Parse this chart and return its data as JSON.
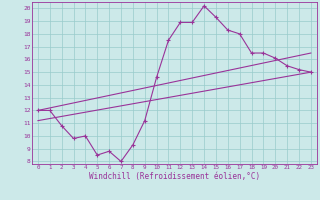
{
  "xlabel": "Windchill (Refroidissement éolien,°C)",
  "ylabel": "",
  "xlim": [
    -0.5,
    23.5
  ],
  "ylim": [
    7.8,
    20.5
  ],
  "yticks": [
    8,
    9,
    10,
    11,
    12,
    13,
    14,
    15,
    16,
    17,
    18,
    19,
    20
  ],
  "xticks": [
    0,
    1,
    2,
    3,
    4,
    5,
    6,
    7,
    8,
    9,
    10,
    11,
    12,
    13,
    14,
    15,
    16,
    17,
    18,
    19,
    20,
    21,
    22,
    23
  ],
  "bg_color": "#cce9e9",
  "line_color": "#993399",
  "grid_color": "#99cccc",
  "line1_x": [
    0,
    1,
    2,
    3,
    4,
    5,
    6,
    7,
    8,
    9,
    10,
    11,
    12,
    13,
    14,
    15,
    16,
    17,
    18,
    19,
    20,
    21,
    22,
    23
  ],
  "line1_y": [
    12.0,
    12.0,
    10.8,
    9.8,
    10.0,
    8.5,
    8.8,
    8.0,
    9.3,
    11.2,
    14.6,
    17.5,
    18.9,
    18.9,
    20.2,
    19.3,
    18.3,
    18.0,
    16.5,
    16.5,
    16.1,
    15.5,
    15.2,
    15.0
  ],
  "line2_x": [
    0,
    23
  ],
  "line2_y": [
    12.0,
    16.5
  ],
  "line3_x": [
    0,
    23
  ],
  "line3_y": [
    11.2,
    15.0
  ]
}
